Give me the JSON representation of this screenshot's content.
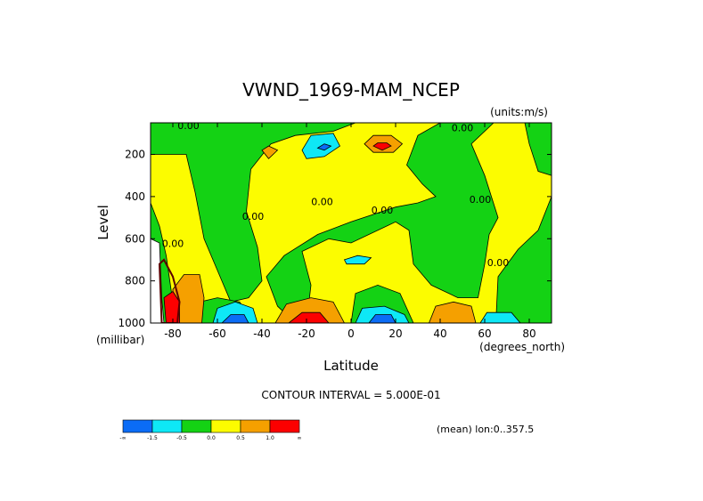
{
  "chart_data": {
    "type": "heatmap",
    "title": "VWND_1969-MAM_NCEP",
    "units": "(units:m/s)",
    "xlabel": "Latitude",
    "ylabel": "Level",
    "x_unit_label": "(degrees_north)",
    "y_unit_label": "(millibar)",
    "xlim": [
      -90,
      90
    ],
    "ylim": [
      1000,
      50
    ],
    "y_inverted": true,
    "xticks": [
      -80,
      -60,
      -40,
      -20,
      0,
      20,
      40,
      60,
      80
    ],
    "xtick_labels": [
      "-80",
      "-60",
      "-40",
      "-20",
      "0",
      "20",
      "40",
      "60",
      "80"
    ],
    "yticks": [
      200,
      400,
      600,
      800,
      1000
    ],
    "ytick_labels": [
      "200",
      "400",
      "600",
      "800",
      "1000"
    ],
    "contour_interval_text": "CONTOUR INTERVAL = 5.000E-01",
    "mean_text": "(mean) lon:0..357.5",
    "contour_labels": [
      {
        "x": -73,
        "y": 80,
        "text": "0.00"
      },
      {
        "x": -44,
        "y": 510,
        "text": "0.00"
      },
      {
        "x": -80,
        "y": 640,
        "text": "0.00"
      },
      {
        "x": -13,
        "y": 440,
        "text": "0.00"
      },
      {
        "x": 14,
        "y": 480,
        "text": "0.00"
      },
      {
        "x": 50,
        "y": 90,
        "text": "0.00"
      },
      {
        "x": 58,
        "y": 430,
        "text": "0.00"
      },
      {
        "x": 66,
        "y": 730,
        "text": "0.00"
      }
    ],
    "colorbar": {
      "colors": [
        "#0b6cf6",
        "#0ee8f6",
        "#14d214",
        "#fcfc00",
        "#f5a000",
        "#fc0000"
      ],
      "labels": [
        "-∞",
        "-1.5",
        "-0.5",
        "0.0",
        "0.5",
        "1.0",
        "∞"
      ]
    },
    "field": {
      "background_color": "#fcfc00",
      "regions": [
        {
          "color": "#14d214",
          "points": [
            [
              -90,
              50
            ],
            [
              -85,
              120
            ],
            [
              -80,
              180
            ],
            [
              -70,
              120
            ],
            [
              -62,
              50
            ]
          ]
        },
        {
          "color": "#14d214",
          "points": [
            [
              -90,
              200
            ],
            [
              -74,
              200
            ],
            [
              -70,
              380
            ],
            [
              -66,
              600
            ],
            [
              -58,
              800
            ],
            [
              -54,
              900
            ],
            [
              -46,
              880
            ],
            [
              -40,
              800
            ],
            [
              -42,
              640
            ],
            [
              -47,
              470
            ],
            [
              -45,
              270
            ],
            [
              -36,
              150
            ],
            [
              -25,
              110
            ],
            [
              -8,
              90
            ],
            [
              2,
              50
            ],
            [
              -90,
              50
            ]
          ]
        },
        {
          "color": "#14d214",
          "points": [
            [
              -20,
              1000
            ],
            [
              -18,
              820
            ],
            [
              -22,
              660
            ],
            [
              -10,
              600
            ],
            [
              0,
              620
            ],
            [
              20,
              520
            ],
            [
              26,
              560
            ],
            [
              28,
              720
            ],
            [
              36,
              820
            ],
            [
              48,
              880
            ],
            [
              57,
              880
            ],
            [
              60,
              720
            ],
            [
              62,
              580
            ],
            [
              66,
              500
            ],
            [
              60,
              300
            ],
            [
              54,
              150
            ],
            [
              64,
              50
            ],
            [
              40,
              50
            ],
            [
              30,
              110
            ],
            [
              25,
              250
            ],
            [
              32,
              340
            ],
            [
              38,
              400
            ],
            [
              30,
              430
            ],
            [
              20,
              450
            ],
            [
              0,
              520
            ],
            [
              -15,
              580
            ],
            [
              -30,
              680
            ],
            [
              -38,
              780
            ],
            [
              -33,
              920
            ],
            [
              -25,
              1000
            ]
          ]
        },
        {
          "color": "#14d214",
          "points": [
            [
              -90,
              430
            ],
            [
              -86,
              540
            ],
            [
              -83,
              680
            ],
            [
              -80,
              900
            ],
            [
              -77,
              1000
            ],
            [
              -90,
              1000
            ]
          ]
        },
        {
          "color": "#14d214",
          "points": [
            [
              65,
              1000
            ],
            [
              66,
              780
            ],
            [
              75,
              650
            ],
            [
              84,
              560
            ],
            [
              90,
              400
            ],
            [
              90,
              1000
            ]
          ]
        },
        {
          "color": "#14d214",
          "points": [
            [
              78,
              50
            ],
            [
              90,
              50
            ],
            [
              90,
              300
            ],
            [
              84,
              280
            ],
            [
              80,
              150
            ]
          ]
        },
        {
          "color": "#14d214",
          "points": [
            [
              -70,
              1000
            ],
            [
              -68,
              900
            ],
            [
              -60,
              880
            ],
            [
              -50,
              900
            ],
            [
              -44,
              1000
            ]
          ]
        },
        {
          "color": "#14d214",
          "points": [
            [
              0,
              1000
            ],
            [
              2,
              860
            ],
            [
              12,
              820
            ],
            [
              22,
              860
            ],
            [
              28,
              1000
            ]
          ]
        },
        {
          "color": "#f5a000",
          "points": [
            [
              -80,
              1000
            ],
            [
              -80,
              840
            ],
            [
              -75,
              770
            ],
            [
              -68,
              770
            ],
            [
              -66,
              880
            ],
            [
              -67,
              1000
            ]
          ]
        },
        {
          "color": "#f5a000",
          "points": [
            [
              -34,
              1000
            ],
            [
              -29,
              910
            ],
            [
              -18,
              880
            ],
            [
              -8,
              900
            ],
            [
              -3,
              1000
            ]
          ]
        },
        {
          "color": "#f5a000",
          "points": [
            [
              -40,
              180
            ],
            [
              -37,
              160
            ],
            [
              -33,
              180
            ],
            [
              -37,
              220
            ]
          ]
        },
        {
          "color": "#f5a000",
          "points": [
            [
              6,
              150
            ],
            [
              10,
              110
            ],
            [
              18,
              110
            ],
            [
              23,
              150
            ],
            [
              19,
              190
            ],
            [
              10,
              190
            ]
          ]
        },
        {
          "color": "#f5a000",
          "points": [
            [
              35,
              1000
            ],
            [
              38,
              920
            ],
            [
              46,
              900
            ],
            [
              54,
              920
            ],
            [
              56,
              1000
            ]
          ]
        },
        {
          "color": "#fc0000",
          "points": [
            [
              -28,
              1000
            ],
            [
              -22,
              950
            ],
            [
              -14,
              950
            ],
            [
              -10,
              1000
            ]
          ]
        },
        {
          "color": "#fc0000",
          "points": [
            [
              10,
              160
            ],
            [
              12,
              145
            ],
            [
              16,
              145
            ],
            [
              18,
              160
            ],
            [
              14,
              180
            ]
          ]
        },
        {
          "color": "#fc0000",
          "points": [
            [
              -83,
              1000
            ],
            [
              -84,
              880
            ],
            [
              -80,
              850
            ],
            [
              -77,
              900
            ],
            [
              -77,
              1000
            ]
          ]
        },
        {
          "color": "#0ee8f6",
          "points": [
            [
              -62,
              1000
            ],
            [
              -60,
              930
            ],
            [
              -52,
              900
            ],
            [
              -44,
              930
            ],
            [
              -42,
              1000
            ]
          ]
        },
        {
          "color": "#0ee8f6",
          "points": [
            [
              -22,
              180
            ],
            [
              -18,
              110
            ],
            [
              -8,
              100
            ],
            [
              -5,
              160
            ],
            [
              -12,
              210
            ],
            [
              -20,
              220
            ]
          ]
        },
        {
          "color": "#0ee8f6",
          "points": [
            [
              2,
              1000
            ],
            [
              5,
              930
            ],
            [
              15,
              920
            ],
            [
              24,
              960
            ],
            [
              26,
              1000
            ]
          ]
        },
        {
          "color": "#0ee8f6",
          "points": [
            [
              -3,
              700
            ],
            [
              3,
              680
            ],
            [
              9,
              690
            ],
            [
              6,
              720
            ],
            [
              -2,
              720
            ]
          ]
        },
        {
          "color": "#0ee8f6",
          "points": [
            [
              58,
              1000
            ],
            [
              61,
              950
            ],
            [
              72,
              950
            ],
            [
              76,
              1000
            ]
          ]
        },
        {
          "color": "#0b6cf6",
          "points": [
            [
              -58,
              1000
            ],
            [
              -54,
              960
            ],
            [
              -48,
              960
            ],
            [
              -46,
              1000
            ]
          ]
        },
        {
          "color": "#0b6cf6",
          "points": [
            [
              8,
              1000
            ],
            [
              11,
              960
            ],
            [
              18,
              960
            ],
            [
              20,
              1000
            ]
          ]
        },
        {
          "color": "#0b6cf6",
          "points": [
            [
              -15,
              170
            ],
            [
              -12,
              150
            ],
            [
              -9,
              160
            ],
            [
              -12,
              180
            ]
          ]
        },
        {
          "color": "#ffffff",
          "points": [
            [
              -90,
              600
            ],
            [
              -86,
              620
            ],
            [
              -85,
              880
            ],
            [
              -84,
              1000
            ],
            [
              -90,
              1000
            ]
          ]
        }
      ],
      "dark_hatch": {
        "color": "#5a0000",
        "points": [
          [
            -86,
            720
          ],
          [
            -84,
            700
          ],
          [
            -80,
            780
          ],
          [
            -77,
            900
          ],
          [
            -78,
            1000
          ],
          [
            -85,
            1000
          ]
        ]
      }
    }
  }
}
